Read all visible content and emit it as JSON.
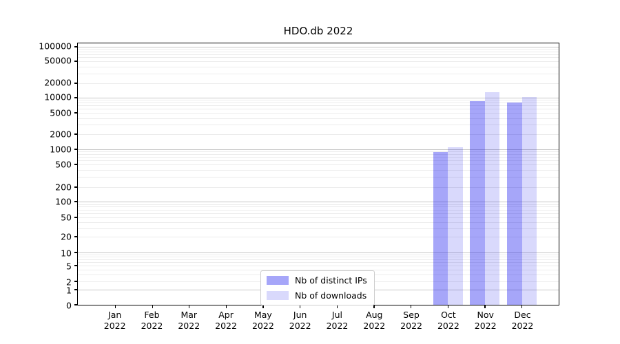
{
  "title": "HDO.db 2022",
  "chart_data": {
    "type": "bar",
    "title": "HDO.db 2022",
    "categories": [
      "Jan 2022",
      "Feb 2022",
      "Mar 2022",
      "Apr 2022",
      "May 2022",
      "Jun 2022",
      "Jul 2022",
      "Aug 2022",
      "Sep 2022",
      "Oct 2022",
      "Nov 2022",
      "Dec 2022"
    ],
    "category_labels": [
      {
        "month": "Jan",
        "year": "2022"
      },
      {
        "month": "Feb",
        "year": "2022"
      },
      {
        "month": "Mar",
        "year": "2022"
      },
      {
        "month": "Apr",
        "year": "2022"
      },
      {
        "month": "May",
        "year": "2022"
      },
      {
        "month": "Jun",
        "year": "2022"
      },
      {
        "month": "Jul",
        "year": "2022"
      },
      {
        "month": "Aug",
        "year": "2022"
      },
      {
        "month": "Sep",
        "year": "2022"
      },
      {
        "month": "Oct",
        "year": "2022"
      },
      {
        "month": "Nov",
        "year": "2022"
      },
      {
        "month": "Dec",
        "year": "2022"
      }
    ],
    "series": [
      {
        "name": "Nb of distinct IPs",
        "color": "#0000ee",
        "alpha": 0.35,
        "values": [
          0,
          0,
          0,
          0,
          0,
          0,
          0,
          0,
          0,
          880,
          8500,
          8000
        ]
      },
      {
        "name": "Nb of downloads",
        "color": "#0000ee",
        "alpha": 0.15,
        "values": [
          0,
          0,
          0,
          0,
          0,
          0,
          0,
          0,
          0,
          1100,
          13000,
          10400
        ]
      }
    ],
    "yscale": "symlog",
    "ylim": [
      0,
      100000
    ],
    "yticks": [
      0,
      1,
      2,
      5,
      10,
      20,
      50,
      100,
      200,
      500,
      1000,
      2000,
      5000,
      10000,
      20000,
      50000,
      100000
    ],
    "xlabel": "",
    "ylabel": "",
    "grid": true,
    "legend_position": "bottom-center",
    "grid_major_color": "#c6c6c6",
    "grid_minor_color": "#ececec"
  }
}
